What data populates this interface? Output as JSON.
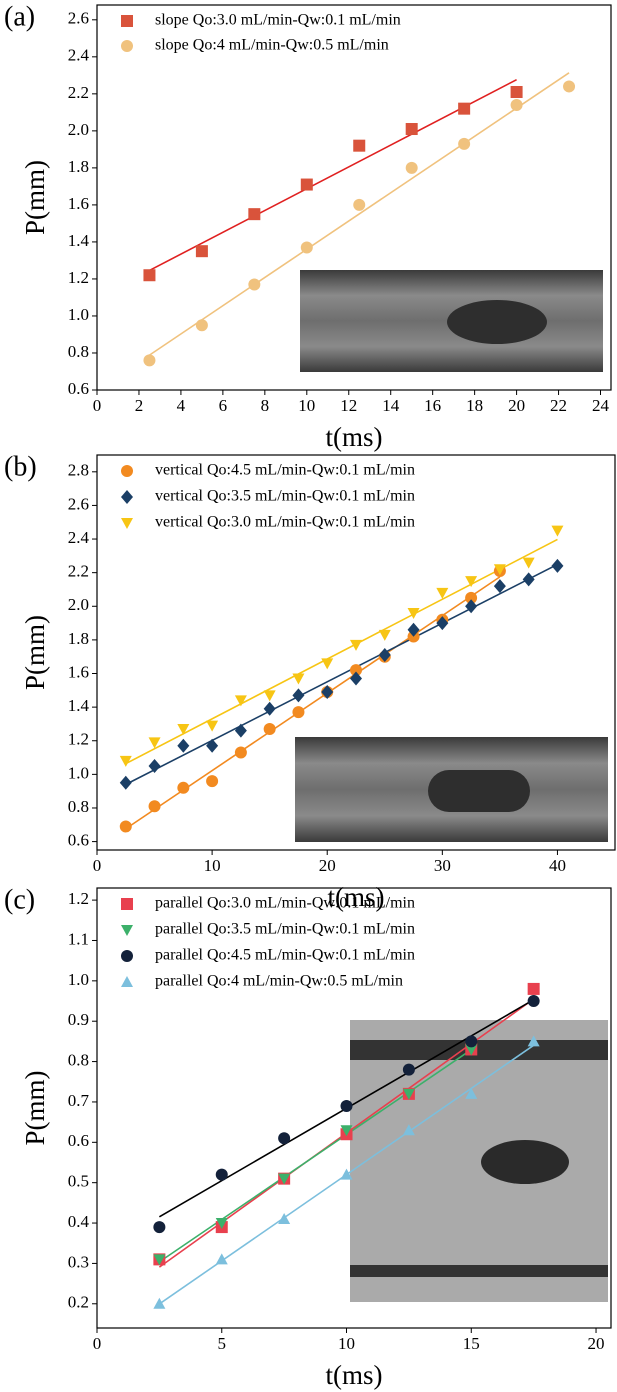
{
  "chart_data": [
    {
      "type": "scatter",
      "panel_label": "(a)",
      "x_label": "t(ms)",
      "y_label": "P(mm)",
      "xlim": [
        0,
        24.5
      ],
      "ylim": [
        0.6,
        2.68
      ],
      "xticks": [
        0,
        2,
        4,
        6,
        8,
        10,
        12,
        14,
        16,
        18,
        20,
        22,
        24
      ],
      "yticks": [
        0.6,
        0.8,
        {
          "value": 1,
          "label": "1.0"
        },
        1.2,
        1.4,
        1.6,
        1.8,
        {
          "value": 2,
          "label": "2.0"
        },
        2.2,
        2.4,
        2.6
      ],
      "series": [
        {
          "name": "slope Qo:3.0 mL/min-Qw:0.1 mL/min",
          "color": "#d9533b",
          "fit_color": "#e02020",
          "marker": "square",
          "x": [
            2.5,
            5,
            7.5,
            10,
            12.5,
            15,
            17.5,
            20
          ],
          "values": [
            1.22,
            1.35,
            1.55,
            1.71,
            1.92,
            2.01,
            2.12,
            2.21
          ]
        },
        {
          "name": "slope Qo:4 mL/min-Qw:0.5 mL/min",
          "color": "#f0c27e",
          "fit_color": "#f0c27e",
          "marker": "circle",
          "x": [
            2.5,
            5,
            7.5,
            10,
            12.5,
            15,
            17.5,
            20,
            22.5
          ],
          "values": [
            0.76,
            0.95,
            1.17,
            1.37,
            1.6,
            1.8,
            1.93,
            2.14,
            2.24
          ]
        }
      ]
    },
    {
      "type": "scatter",
      "panel_label": "(b)",
      "x_label": "t(ms)",
      "y_label": "P(mm)",
      "xlim": [
        0,
        45
      ],
      "ylim": [
        0.55,
        2.9
      ],
      "xticks": [
        0,
        10,
        20,
        30,
        40
      ],
      "yticks": [
        0.6,
        0.8,
        {
          "value": 1,
          "label": "1.0"
        },
        1.2,
        1.4,
        1.6,
        1.8,
        {
          "value": 2,
          "label": "2.0"
        },
        2.2,
        2.4,
        2.6,
        2.8
      ],
      "series": [
        {
          "name": "vertical Qo:4.5 mL/min-Qw:0.1 mL/min",
          "color": "#f28a20",
          "fit_color": "#f28a20",
          "marker": "circle",
          "x": [
            2.5,
            5,
            7.5,
            10,
            12.5,
            15,
            17.5,
            20,
            22.5,
            25,
            27.5,
            30,
            32.5,
            35
          ],
          "values": [
            0.69,
            0.81,
            0.92,
            0.96,
            1.13,
            1.27,
            1.37,
            1.49,
            1.62,
            1.7,
            1.82,
            1.92,
            2.05,
            2.21
          ]
        },
        {
          "name": "vertical Qo:3.5 mL/min-Qw:0.1 mL/min",
          "color": "#1b3f66",
          "fit_color": "#1b3f66",
          "marker": "diamond",
          "x": [
            2.5,
            5,
            7.5,
            10,
            12.5,
            15,
            17.5,
            20,
            22.5,
            25,
            27.5,
            30,
            32.5,
            35,
            37.5,
            40
          ],
          "values": [
            0.95,
            1.05,
            1.17,
            1.17,
            1.26,
            1.39,
            1.47,
            1.49,
            1.57,
            1.71,
            1.86,
            1.9,
            2.0,
            2.12,
            2.16,
            2.24
          ]
        },
        {
          "name": "vertical Qo:3.0 mL/min-Qw:0.1 mL/min",
          "color": "#f7c514",
          "fit_color": "#f7c514",
          "marker": "triangle-down",
          "x": [
            2.5,
            5,
            7.5,
            10,
            12.5,
            15,
            17.5,
            20,
            22.5,
            25,
            27.5,
            30,
            32.5,
            35,
            37.5,
            40
          ],
          "values": [
            1.08,
            1.19,
            1.27,
            1.29,
            1.44,
            1.47,
            1.57,
            1.66,
            1.77,
            1.83,
            1.96,
            2.08,
            2.15,
            2.22,
            2.26,
            2.45
          ]
        }
      ]
    },
    {
      "type": "scatter",
      "panel_label": "(c)",
      "x_label": "t(ms)",
      "y_label": "P(mm)",
      "xlim": [
        0,
        20.6
      ],
      "ylim": [
        0.14,
        1.23
      ],
      "xticks": [
        0,
        5,
        10,
        15,
        20
      ],
      "yticks": [
        0.2,
        0.3,
        0.4,
        0.5,
        0.6,
        0.7,
        0.8,
        0.9,
        {
          "value": 1,
          "label": "1.0"
        },
        1.1,
        1.2
      ],
      "series": [
        {
          "name": "parallel Qo:3.0 mL/min-Qw:0.1 mL/min",
          "color": "#e8404e",
          "fit_color": "#e8404e",
          "marker": "square",
          "x": [
            2.5,
            5,
            7.5,
            10,
            12.5,
            15,
            17.5
          ],
          "values": [
            0.31,
            0.39,
            0.51,
            0.62,
            0.72,
            0.83,
            0.98
          ]
        },
        {
          "name": "parallel Qo:3.5 mL/min-Qw:0.1 mL/min",
          "color": "#3cb06a",
          "fit_color": "#3cb06a",
          "marker": "triangle-down",
          "x": [
            2.5,
            5,
            7.5,
            10,
            12.5,
            15
          ],
          "values": [
            0.31,
            0.4,
            0.51,
            0.63,
            0.72,
            0.83
          ]
        },
        {
          "name": "parallel Qo:4.5 mL/min-Qw:0.1 mL/min",
          "color": "#13213a",
          "fit_color": "#000000",
          "marker": "circle",
          "x": [
            2.5,
            5,
            7.5,
            10,
            12.5,
            15,
            17.5
          ],
          "values": [
            0.39,
            0.52,
            0.61,
            0.69,
            0.78,
            0.85,
            0.95
          ]
        },
        {
          "name": "parallel Qo:4 mL/min-Qw:0.5 mL/min",
          "color": "#7cbfdd",
          "fit_color": "#7cbfdd",
          "marker": "triangle-up",
          "x": [
            2.5,
            5,
            7.5,
            10,
            12.5,
            15,
            17.5
          ],
          "values": [
            0.2,
            0.31,
            0.41,
            0.52,
            0.63,
            0.72,
            0.85
          ]
        }
      ]
    }
  ]
}
